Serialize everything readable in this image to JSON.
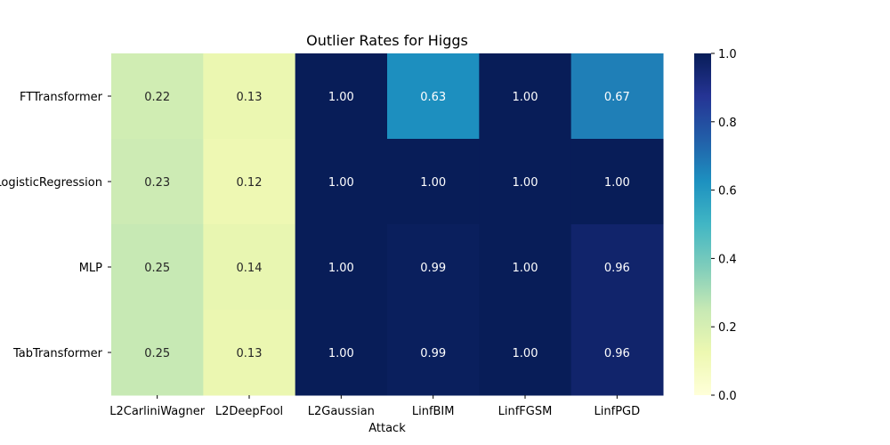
{
  "chart_data": {
    "type": "heatmap",
    "title": "Outlier Rates for Higgs",
    "xlabel": "Attack",
    "ylabel": "",
    "x_categories": [
      "L2CarliniWagner",
      "L2DeepFool",
      "L2Gaussian",
      "LinfBIM",
      "LinfFGSM",
      "LinfPGD"
    ],
    "y_categories": [
      "FTTransformer",
      "LogisticRegression",
      "MLP",
      "TabTransformer"
    ],
    "values": [
      [
        0.22,
        0.13,
        1.0,
        0.63,
        1.0,
        0.67
      ],
      [
        0.23,
        0.12,
        1.0,
        1.0,
        1.0,
        1.0
      ],
      [
        0.25,
        0.14,
        1.0,
        0.99,
        1.0,
        0.96
      ],
      [
        0.25,
        0.13,
        1.0,
        0.99,
        1.0,
        0.96
      ]
    ],
    "value_format": "2 decimals",
    "colormap": "YlGnBu",
    "colorbar": {
      "range": [
        0,
        1
      ],
      "ticks": [
        "0.0",
        "0.2",
        "0.4",
        "0.6",
        "0.8",
        "1.0"
      ]
    }
  }
}
